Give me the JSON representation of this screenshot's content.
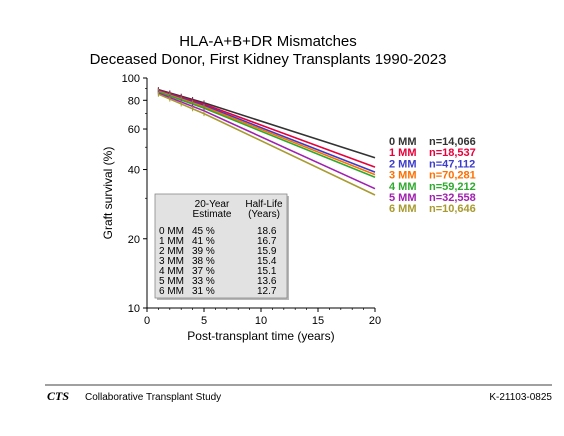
{
  "chart_data": {
    "type": "line",
    "title": "HLA-A+B+DR Mismatches",
    "subtitle": "Deceased Donor, First Kidney Transplants 1990-2023",
    "xlabel": "Post-transplant time (years)",
    "ylabel": "Graft survival (%)",
    "xlim": [
      0,
      20
    ],
    "ylim": [
      10,
      100
    ],
    "yscale": "log",
    "x_ticks": [
      0,
      5,
      10,
      15,
      20
    ],
    "y_ticks": [
      10,
      20,
      40,
      60,
      80,
      100
    ],
    "grid": false,
    "legend_position": "right",
    "series": [
      {
        "name": "0 MM",
        "n": "n=14,066",
        "color": "#333333",
        "x": [
          1,
          5,
          20
        ],
        "y": [
          89,
          78,
          45
        ]
      },
      {
        "name": "1 MM",
        "n": "n=18,537",
        "color": "#e8003a",
        "x": [
          1,
          5,
          20
        ],
        "y": [
          88.5,
          77,
          41
        ]
      },
      {
        "name": "2 MM",
        "n": "n=47,112",
        "color": "#3c3ccc",
        "x": [
          1,
          5,
          20
        ],
        "y": [
          88,
          76,
          39
        ]
      },
      {
        "name": "3 MM",
        "n": "n=70,281",
        "color": "#ff6f00",
        "x": [
          1,
          5,
          20
        ],
        "y": [
          87.5,
          75,
          38
        ]
      },
      {
        "name": "4 MM",
        "n": "n=59,212",
        "color": "#2eaa2e",
        "x": [
          1,
          5,
          20
        ],
        "y": [
          87,
          74,
          37
        ]
      },
      {
        "name": "5 MM",
        "n": "n=32,558",
        "color": "#a020b0",
        "x": [
          1,
          5,
          20
        ],
        "y": [
          86,
          72,
          33
        ]
      },
      {
        "name": "6 MM",
        "n": "n=10,646",
        "color": "#a89a30",
        "x": [
          1,
          5,
          20
        ],
        "y": [
          85,
          70,
          31
        ]
      }
    ],
    "table": {
      "header_estimate": [
        "20-Year",
        "Estimate"
      ],
      "header_halflife": [
        "Half-Life",
        "(Years)"
      ],
      "rows": [
        {
          "group": "0 MM",
          "estimate": "45 %",
          "half_life": "18.6"
        },
        {
          "group": "1 MM",
          "estimate": "41 %",
          "half_life": "16.7"
        },
        {
          "group": "2 MM",
          "estimate": "39 %",
          "half_life": "15.9"
        },
        {
          "group": "3 MM",
          "estimate": "38 %",
          "half_life": "15.4"
        },
        {
          "group": "4 MM",
          "estimate": "37 %",
          "half_life": "15.1"
        },
        {
          "group": "5 MM",
          "estimate": "33 %",
          "half_life": "13.6"
        },
        {
          "group": "6 MM",
          "estimate": "31 %",
          "half_life": "12.7"
        }
      ]
    }
  },
  "footer": {
    "logo": "CTS",
    "org": "Collaborative Transplant Study",
    "code": "K-21103-0825"
  }
}
